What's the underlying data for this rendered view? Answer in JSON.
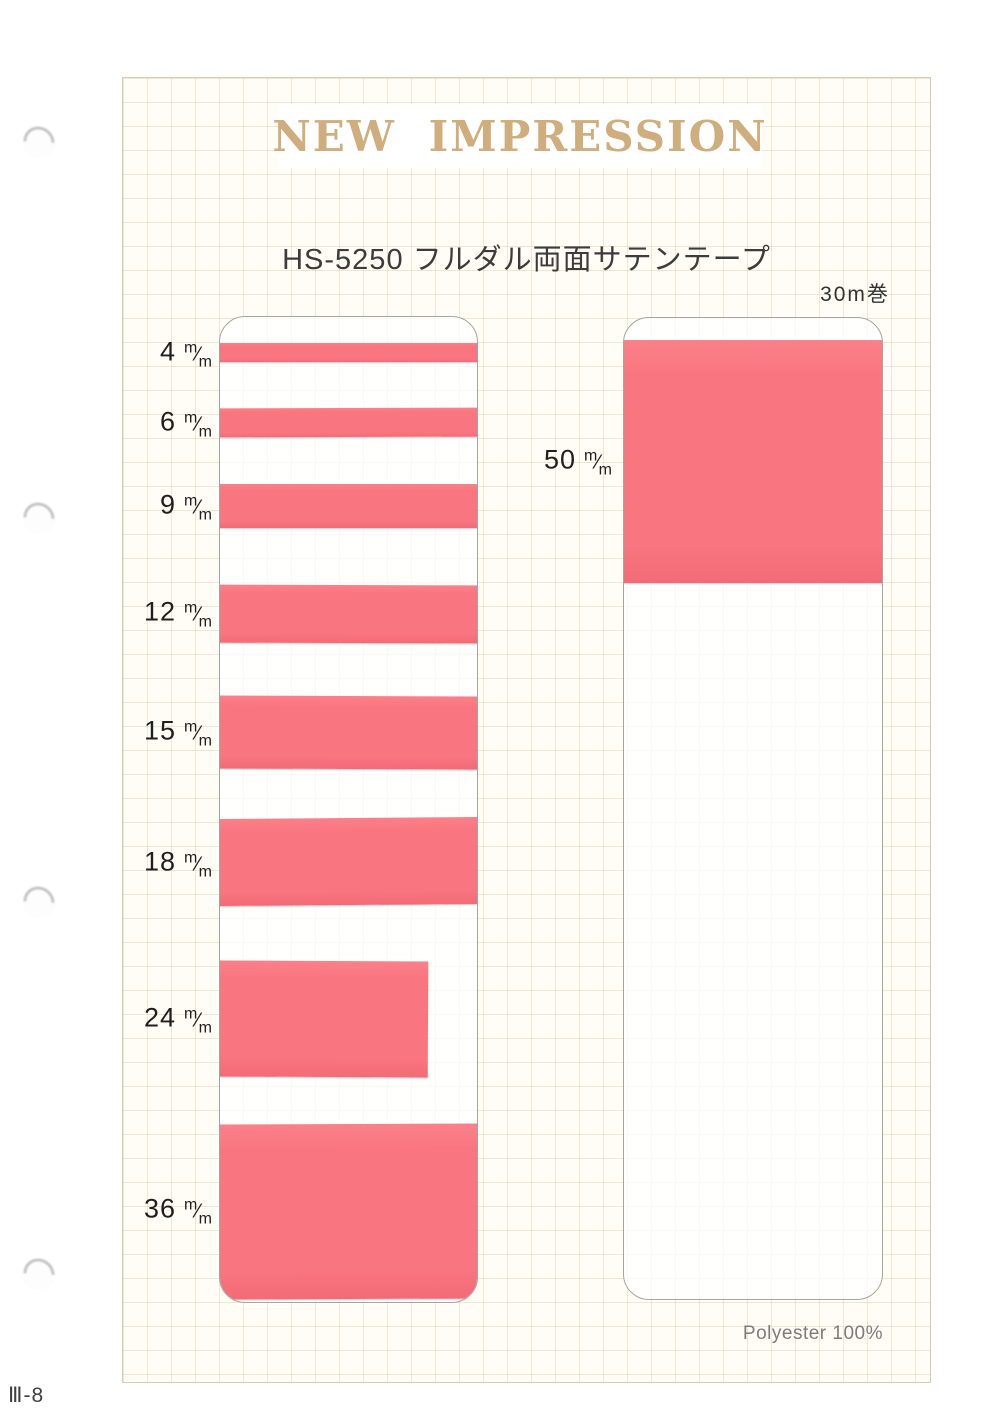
{
  "header": {
    "title": "NEW IMPRESSION"
  },
  "product": {
    "title": "HS-5250 フルダル両面サテンテープ",
    "roll_note": "30m巻",
    "material": "Polyester 100%"
  },
  "footer": {
    "page_number": "Ⅲ-8"
  },
  "unit": {
    "sup": "m",
    "frac": "⁄",
    "sub": "m"
  },
  "samples": {
    "left": [
      {
        "size": 4
      },
      {
        "size": 6
      },
      {
        "size": 9
      },
      {
        "size": 12
      },
      {
        "size": 15
      },
      {
        "size": 18
      },
      {
        "size": 24
      },
      {
        "size": 36
      }
    ],
    "right": [
      {
        "size": 50
      }
    ]
  },
  "colors": {
    "tape": "#f9757f",
    "header_gold": "#d0ad7c"
  }
}
